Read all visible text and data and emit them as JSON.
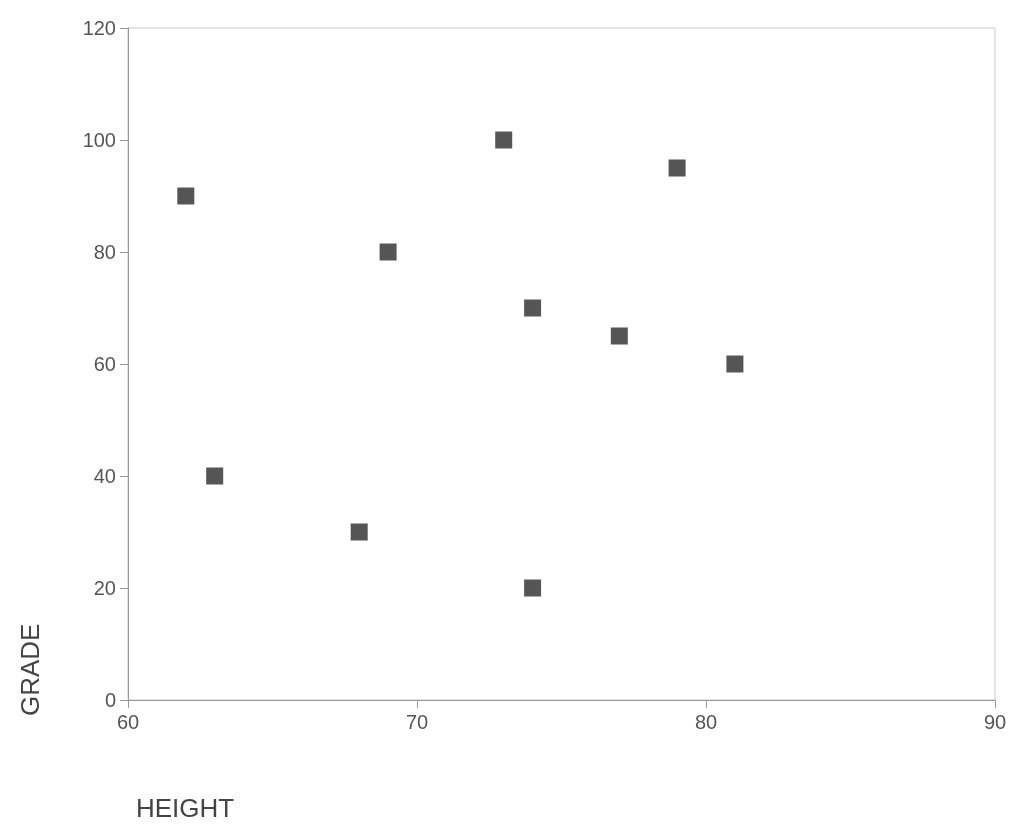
{
  "chart_data": {
    "type": "scatter",
    "xlabel": "HEIGHT",
    "ylabel": "GRADE",
    "x": [
      62,
      63,
      68,
      69,
      73,
      74,
      74,
      77,
      79,
      81
    ],
    "series": [
      {
        "color": "#2b2b2b",
        "values": [
          90,
          40,
          30,
          80,
          100,
          70,
          20,
          65,
          95,
          60
        ]
      }
    ],
    "xlim": [
      60,
      90
    ],
    "xticks": [
      60,
      70,
      80,
      90
    ],
    "ylim": [
      0,
      120
    ],
    "yticks": [
      0,
      20,
      40,
      60,
      80,
      100,
      120
    ],
    "grid": false,
    "marker": "square"
  }
}
